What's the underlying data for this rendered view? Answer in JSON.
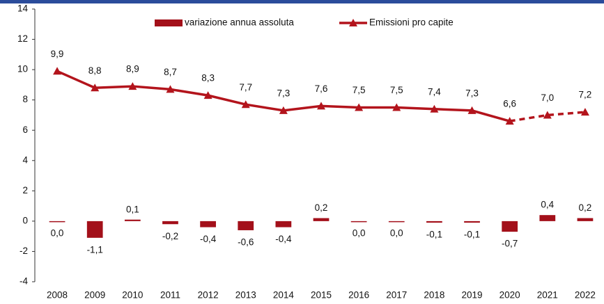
{
  "chart_data": {
    "type": "bar_line",
    "categories": [
      "2008",
      "2009",
      "2010",
      "2011",
      "2012",
      "2013",
      "2014",
      "2015",
      "2016",
      "2017",
      "2018",
      "2019",
      "2020",
      "2021",
      "2022"
    ],
    "series": [
      {
        "name": "variazione annua assoluta",
        "type": "bar",
        "color": "#a3101a",
        "values": [
          0.0,
          -1.1,
          0.1,
          -0.2,
          -0.4,
          -0.6,
          -0.4,
          0.2,
          0.0,
          0.0,
          -0.1,
          -0.1,
          -0.7,
          0.4,
          0.2
        ],
        "value_labels": [
          "0,0",
          "-1,1",
          "0,1",
          "-0,2",
          "-0,4",
          "-0,6",
          "-0,4",
          "0,2",
          "0,0",
          "0,0",
          "-0,1",
          "-0,1",
          "-0,7",
          "0,4",
          "0,2"
        ]
      },
      {
        "name": "Emissioni pro capite",
        "type": "line",
        "color": "#b3141c",
        "dashed_from": "2020",
        "values": [
          9.9,
          8.8,
          8.9,
          8.7,
          8.3,
          7.7,
          7.3,
          7.6,
          7.5,
          7.5,
          7.4,
          7.3,
          6.6,
          7.0,
          7.2
        ],
        "value_labels": [
          "9,9",
          "8,8",
          "8,9",
          "8,7",
          "8,3",
          "7,7",
          "7,3",
          "7,6",
          "7,5",
          "7,5",
          "7,4",
          "7,3",
          "6,6",
          "7,0",
          "7,2"
        ]
      }
    ],
    "ylim": [
      -4,
      14
    ],
    "yticks": [
      -4,
      -2,
      0,
      2,
      4,
      6,
      8,
      10,
      12,
      14
    ],
    "legend": "top"
  }
}
